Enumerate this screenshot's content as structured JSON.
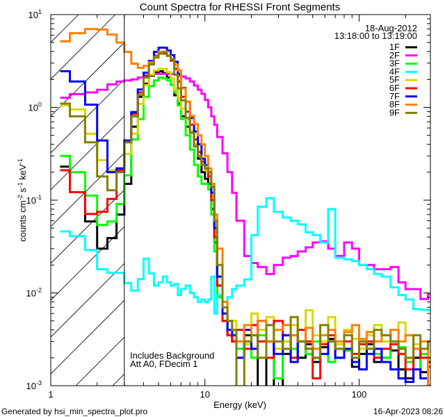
{
  "chart_data": {
    "type": "line",
    "step": true,
    "title": "Count Spectra for RHESSI Front Segments",
    "xlabel": "Energy (keV)",
    "ylabel": "counts cm-2 s-1 keV-1",
    "ylabel_parts": {
      "base": "counts cm",
      "e1": "-2",
      "mid": " s",
      "e2": "-1",
      "mid2": " keV",
      "e3": "-1"
    },
    "xscale": "log",
    "yscale": "log",
    "xlim": [
      1,
      290
    ],
    "ylim": [
      0.001,
      10
    ],
    "xticks": [
      {
        "value": 1,
        "label": "1"
      },
      {
        "value": 10,
        "label": "10"
      },
      {
        "value": 100,
        "label": "100"
      }
    ],
    "yticks": [
      {
        "value": 10,
        "base": "10",
        "exp": "1"
      },
      {
        "value": 1,
        "base": "10",
        "exp": "0"
      },
      {
        "value": 0.1,
        "base": "10",
        "exp": "-1"
      },
      {
        "value": 0.01,
        "base": "10",
        "exp": "-2"
      },
      {
        "value": 0.001,
        "base": "10",
        "exp": "-3"
      }
    ],
    "shaded_region_keV": [
      1,
      3
    ],
    "legend": {
      "position": "top-right",
      "date": "18-Aug-2012",
      "time_range": "13:18:00 to 13:19:00"
    },
    "annotations": [
      "Includes Background",
      "Att A0, FDecim 1"
    ],
    "energy_edges": [
      1.15,
      1.33,
      1.67,
      2,
      2.33,
      2.67,
      3,
      3.33,
      3.67,
      4,
      4.33,
      4.67,
      5,
      5.33,
      5.67,
      6,
      6.33,
      6.67,
      7,
      7.5,
      8,
      8.5,
      9,
      9.5,
      10,
      10.5,
      11,
      11.5,
      12,
      13,
      14,
      15,
      16,
      18,
      20,
      22,
      25,
      28,
      32,
      36,
      40,
      45,
      50,
      56,
      63,
      70,
      80,
      90,
      100,
      112,
      125,
      140,
      160,
      180,
      200,
      225,
      250,
      280,
      300
    ],
    "series": [
      {
        "name": "1F",
        "color": "#000000",
        "values": [
          0.23,
          0.122,
          0.059,
          0.03,
          0.039,
          0.07,
          0.15,
          0.62,
          1.3,
          1.8,
          2.2,
          2.4,
          2.45,
          2.35,
          2.1,
          1.75,
          1.35,
          1.1,
          0.8,
          0.62,
          0.55,
          0.38,
          0.28,
          0.2,
          0.17,
          0.15,
          0.08,
          0.035,
          0.012,
          0.005,
          0.0035,
          0.003,
          0.002,
          0.0035,
          0.0025,
          0.0009,
          0.003,
          0.0008,
          0.0022,
          0.0035,
          0.002,
          0.0028,
          0.0018,
          0.0026,
          0.0032,
          0.002,
          0.0024,
          0.0016,
          0.0022,
          0.0028,
          0.0018,
          0.002,
          0.0024,
          0.0015,
          0.0012,
          0.002,
          0.0014,
          0.0018
        ]
      },
      {
        "name": "2F",
        "color": "#ff00ff",
        "values": [
          1.27,
          1.39,
          1.45,
          1.55,
          1.77,
          1.9,
          1.95,
          2.0,
          2.1,
          2.2,
          2.25,
          2.3,
          2.3,
          2.3,
          2.3,
          2.3,
          2.25,
          2.2,
          2.15,
          2.05,
          1.9,
          1.72,
          1.55,
          1.4,
          1.2,
          1.0,
          0.8,
          0.65,
          0.48,
          0.32,
          0.2,
          0.12,
          0.06,
          0.025,
          0.021,
          0.019,
          0.016,
          0.02,
          0.024,
          0.025,
          0.028,
          0.031,
          0.035,
          0.036,
          0.03,
          0.025,
          0.035,
          0.03,
          0.02,
          0.02,
          0.018,
          0.018,
          0.019,
          0.013,
          0.011,
          0.011,
          0.0086,
          0.0098
        ]
      },
      {
        "name": "3F",
        "color": "#00ff00",
        "values": [
          0.3,
          0.2,
          0.112,
          0.054,
          0.059,
          0.091,
          0.185,
          0.45,
          0.75,
          1.3,
          1.7,
          1.95,
          2.1,
          2.05,
          1.95,
          1.75,
          1.45,
          1.05,
          0.75,
          0.5,
          0.35,
          0.24,
          0.18,
          0.15,
          0.15,
          0.13,
          0.07,
          0.028,
          0.009,
          0.005,
          0.004,
          0.004,
          0.0025,
          0.003,
          0.002,
          0.0035,
          0.0045,
          0.0012,
          0.003,
          0.0025,
          0.004,
          0.0022,
          0.003,
          0.0035,
          0.0018,
          0.0028,
          0.0024,
          0.002,
          0.003,
          0.0025,
          0.0022,
          0.002,
          0.003,
          0.0026,
          0.0018,
          0.0015,
          0.0022,
          0.002
        ]
      },
      {
        "name": "4F",
        "color": "#00ffff",
        "values": [
          0.046,
          0.041,
          0.029,
          0.018,
          0.0165,
          0.0165,
          0.0128,
          0.0106,
          0.0141,
          0.0234,
          0.0162,
          0.012,
          0.013,
          0.015,
          0.013,
          0.012,
          0.0125,
          0.0095,
          0.011,
          0.012,
          0.01,
          0.009,
          0.008,
          0.0085,
          0.008,
          0.0085,
          0.015,
          0.006,
          0.0095,
          0.008,
          0.009,
          0.011,
          0.012,
          0.014,
          0.042,
          0.085,
          0.105,
          0.075,
          0.065,
          0.06,
          0.055,
          0.045,
          0.042,
          0.035,
          0.08,
          0.024,
          0.023,
          0.022,
          0.02,
          0.018,
          0.016,
          0.015,
          0.0115,
          0.0095,
          0.0085,
          0.0067,
          0.0066,
          0.0065
        ]
      },
      {
        "name": "5F",
        "color": "#d8d800",
        "values": [
          1.05,
          0.95,
          0.52,
          0.27,
          0.21,
          0.21,
          0.315,
          0.52,
          1.09,
          1.74,
          2.25,
          2.5,
          2.6,
          2.6,
          2.4,
          2.05,
          1.54,
          1.25,
          0.97,
          0.75,
          0.55,
          0.4,
          0.3,
          0.24,
          0.21,
          0.18,
          0.11,
          0.045,
          0.015,
          0.006,
          0.005,
          0.005,
          0.003,
          0.0028,
          0.006,
          0.004,
          0.0055,
          0.0025,
          0.003,
          0.0045,
          0.003,
          0.0065,
          0.0035,
          0.003,
          0.0055,
          0.0028,
          0.004,
          0.0032,
          0.0025,
          0.0035,
          0.0045,
          0.003,
          0.004,
          0.0048,
          0.0035,
          0.0028,
          0.0025,
          0.003
        ]
      },
      {
        "name": "6F",
        "color": "#ff0000",
        "values": [
          0.21,
          0.122,
          0.071,
          0.075,
          0.103,
          0.21,
          0.42,
          0.85,
          1.45,
          2.2,
          3.0,
          3.6,
          3.8,
          3.8,
          3.6,
          3.2,
          2.6,
          1.9,
          1.3,
          0.9,
          0.65,
          0.45,
          0.33,
          0.26,
          0.22,
          0.18,
          0.1,
          0.04,
          0.012,
          0.005,
          0.0035,
          0.003,
          0.004,
          0.0025,
          0.0045,
          0.003,
          0.002,
          0.005,
          0.0035,
          0.002,
          0.004,
          0.003,
          0.0012,
          0.0028,
          0.0035,
          0.0025,
          0.003,
          0.0022,
          0.0028,
          0.003,
          0.002,
          0.0025,
          0.0028,
          0.0022,
          0.0015,
          0.0025,
          0.002,
          0.0016
        ]
      },
      {
        "name": "7F",
        "color": "#0000ff",
        "values": [
          2.45,
          1.9,
          1.07,
          0.44,
          0.2,
          0.22,
          0.44,
          0.89,
          1.56,
          2.37,
          3.17,
          3.97,
          4.4,
          4.4,
          4.1,
          3.65,
          3.1,
          2.3,
          1.62,
          1.15,
          0.77,
          0.55,
          0.4,
          0.28,
          0.24,
          0.2,
          0.12,
          0.05,
          0.015,
          0.006,
          0.004,
          0.0035,
          0.002,
          0.004,
          0.0025,
          0.005,
          0.003,
          0.0022,
          0.0035,
          0.0018,
          0.003,
          0.0025,
          0.002,
          0.0022,
          0.003,
          0.002,
          0.0025,
          0.0018,
          0.0015,
          0.0022,
          0.0025,
          0.0018,
          0.0015,
          0.0012,
          0.0011,
          0.0015,
          0.0012,
          0.001
        ]
      },
      {
        "name": "8F",
        "color": "#ff8000",
        "values": [
          5.15,
          6.3,
          7.0,
          6.9,
          6.1,
          5.0,
          3.97,
          2.96,
          2.67,
          2.8,
          3.06,
          3.5,
          3.97,
          4.0,
          3.6,
          3.3,
          2.9,
          2.5,
          1.6,
          1.15,
          0.81,
          0.66,
          0.5,
          0.4,
          0.3,
          0.22,
          0.15,
          0.07,
          0.03,
          0.008,
          0.005,
          0.004,
          0.003,
          0.0045,
          0.0035,
          0.005,
          0.003,
          0.004,
          0.0045,
          0.0035,
          0.003,
          0.0042,
          0.0025,
          0.0035,
          0.004,
          0.003,
          0.0038,
          0.0045,
          0.0032,
          0.0038,
          0.003,
          0.0035,
          0.004,
          0.003,
          0.0035,
          0.0025,
          0.003,
          0.0008
        ]
      },
      {
        "name": "9F",
        "color": "#808000",
        "values": [
          1.1,
          0.8,
          0.42,
          0.18,
          0.128,
          0.2,
          0.42,
          0.8,
          1.36,
          2.1,
          2.9,
          3.45,
          3.8,
          3.9,
          3.6,
          3.3,
          2.25,
          1.6,
          1.19,
          0.77,
          0.53,
          0.38,
          0.3,
          0.24,
          0.22,
          0.2,
          0.14,
          0.06,
          0.02,
          0.007,
          0.005,
          0.004,
          0.0008,
          0.003,
          0.0035,
          0.002,
          0.0045,
          0.003,
          0.0025,
          0.0055,
          0.003,
          0.0025,
          0.002,
          0.0045,
          0.003,
          0.0025,
          0.0035,
          0.002,
          0.003,
          0.0025,
          0.004,
          0.0035,
          0.003,
          0.0025,
          0.002,
          0.0035,
          0.0025,
          0.003
        ]
      }
    ]
  },
  "footer": {
    "generated_by": "Generated by hsi_min_spectra_plot.pro",
    "timestamp": "16-Apr-2023 08:26"
  }
}
